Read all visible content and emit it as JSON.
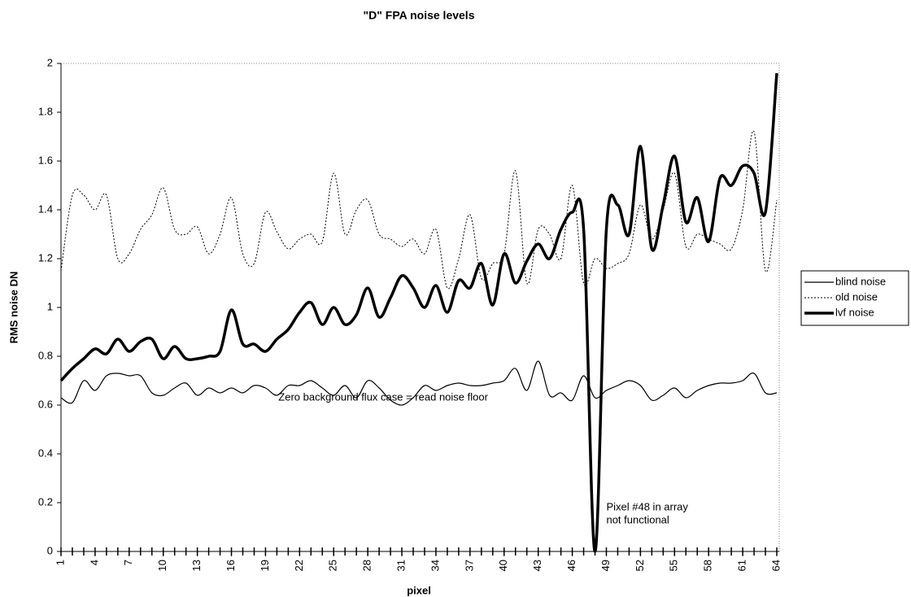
{
  "chart_data": {
    "type": "line",
    "title": "\"D\" FPA noise levels",
    "x_label": "pixel",
    "y_label": "RMS noise DN",
    "x": [
      1,
      2,
      3,
      4,
      5,
      6,
      7,
      8,
      9,
      10,
      11,
      12,
      13,
      14,
      15,
      16,
      17,
      18,
      19,
      20,
      21,
      22,
      23,
      24,
      25,
      26,
      27,
      28,
      29,
      30,
      31,
      32,
      33,
      34,
      35,
      36,
      37,
      38,
      39,
      40,
      41,
      42,
      43,
      44,
      45,
      46,
      47,
      48,
      49,
      50,
      51,
      52,
      53,
      54,
      55,
      56,
      57,
      58,
      59,
      60,
      61,
      62,
      63,
      64
    ],
    "xlim": [
      1,
      64
    ],
    "xticks": [
      1,
      4,
      7,
      10,
      13,
      16,
      19,
      22,
      25,
      28,
      31,
      34,
      37,
      40,
      43,
      46,
      49,
      52,
      55,
      58,
      61,
      64
    ],
    "ylim": [
      0,
      2
    ],
    "yticks": [
      0,
      0.2,
      0.4,
      0.6,
      0.8,
      1,
      1.2,
      1.4,
      1.6,
      1.8,
      2
    ],
    "grid": false,
    "legend": "right",
    "series": [
      {
        "name": "blind noise",
        "color": "#000000",
        "style": "solid",
        "values": [
          0.63,
          0.61,
          0.7,
          0.66,
          0.72,
          0.73,
          0.72,
          0.72,
          0.65,
          0.64,
          0.67,
          0.69,
          0.64,
          0.67,
          0.65,
          0.67,
          0.65,
          0.68,
          0.67,
          0.64,
          0.68,
          0.68,
          0.7,
          0.67,
          0.64,
          0.68,
          0.63,
          0.7,
          0.67,
          0.62,
          0.6,
          0.63,
          0.68,
          0.66,
          0.68,
          0.69,
          0.68,
          0.68,
          0.69,
          0.7,
          0.75,
          0.66,
          0.78,
          0.64,
          0.65,
          0.62,
          0.72,
          0.63,
          0.66,
          0.68,
          0.7,
          0.68,
          0.62,
          0.64,
          0.67,
          0.63,
          0.66,
          0.68,
          0.69,
          0.69,
          0.7,
          0.73,
          0.65,
          0.65
        ]
      },
      {
        "name": "old noise",
        "color": "#000000",
        "style": "dashed",
        "values": [
          1.15,
          1.46,
          1.46,
          1.4,
          1.46,
          1.2,
          1.22,
          1.32,
          1.38,
          1.49,
          1.32,
          1.3,
          1.33,
          1.22,
          1.3,
          1.45,
          1.22,
          1.18,
          1.39,
          1.31,
          1.24,
          1.28,
          1.3,
          1.27,
          1.55,
          1.3,
          1.4,
          1.44,
          1.3,
          1.28,
          1.25,
          1.28,
          1.22,
          1.32,
          1.08,
          1.2,
          1.38,
          1.12,
          1.18,
          1.22,
          1.56,
          1.1,
          1.32,
          1.3,
          1.2,
          1.5,
          1.1,
          1.2,
          1.16,
          1.18,
          1.22,
          1.42,
          1.28,
          1.4,
          1.55,
          1.25,
          1.3,
          1.28,
          1.26,
          1.24,
          1.4,
          1.72,
          1.15,
          1.44
        ]
      },
      {
        "name": "lvf noise",
        "color": "#000000",
        "style": "bold",
        "values": [
          0.7,
          0.75,
          0.79,
          0.83,
          0.81,
          0.87,
          0.82,
          0.86,
          0.87,
          0.79,
          0.84,
          0.79,
          0.79,
          0.8,
          0.82,
          0.99,
          0.85,
          0.85,
          0.82,
          0.87,
          0.91,
          0.98,
          1.02,
          0.93,
          1.0,
          0.93,
          0.97,
          1.08,
          0.96,
          1.04,
          1.13,
          1.08,
          1.0,
          1.09,
          0.98,
          1.11,
          1.08,
          1.18,
          1.01,
          1.22,
          1.1,
          1.19,
          1.26,
          1.2,
          1.32,
          1.39,
          1.32,
          0.0,
          1.32,
          1.42,
          1.3,
          1.66,
          1.24,
          1.42,
          1.62,
          1.35,
          1.45,
          1.27,
          1.53,
          1.5,
          1.58,
          1.55,
          1.39,
          1.96
        ]
      }
    ],
    "annotations": [
      {
        "text": [
          "Zero background flux case = read noise floor"
        ],
        "x": 23,
        "y": 0.63
      },
      {
        "text": [
          "Pixel #48 in array",
          "not functional"
        ],
        "x": 49,
        "y": 0.18
      }
    ]
  }
}
